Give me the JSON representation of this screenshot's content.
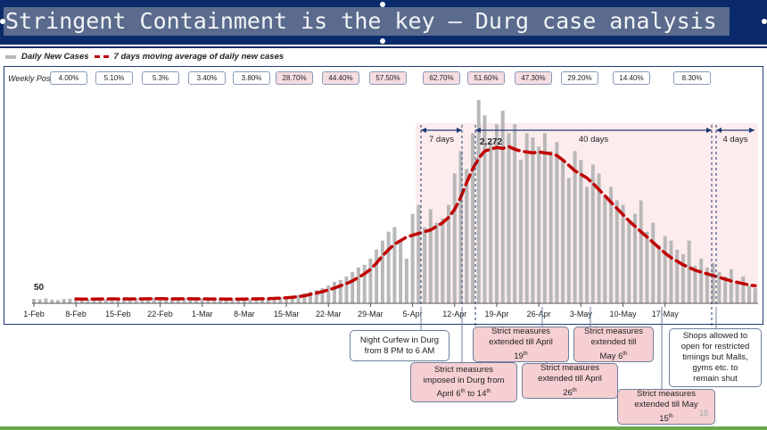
{
  "title": "Stringent Containment is the key  – Durg case analysis",
  "slide_number": "18",
  "legend": {
    "bars": "Daily New Cases",
    "line": "7 days moving average of daily new cases"
  },
  "weekly_positivity": {
    "label": "Weekly Positivity",
    "values": [
      "4.00%",
      "5.10%",
      "5.3%",
      "3.40%",
      "3.80%",
      "28.70%",
      "44.40%",
      "57.50%",
      "62.70%",
      "51.60%",
      "47.30%",
      "29.20%",
      "14.40%",
      "8.30%"
    ]
  },
  "colors": {
    "bars": "#b8b8b8",
    "moving_average": "#c00000",
    "shaded_period": "#fbe6e8",
    "title_bar": "#0a2a6b",
    "callout_pink": "#f6cfd3"
  },
  "chart_data": {
    "type": "bar",
    "x_start": "2021-02-01",
    "x_ticks": [
      "1-Feb",
      "8-Feb",
      "15-Feb",
      "22-Feb",
      "1-Mar",
      "8-Mar",
      "15-Mar",
      "22-Mar",
      "29-Mar",
      "5-Apr",
      "12-Apr",
      "19-Apr",
      "26-Apr",
      "3-May",
      "10-May",
      "17-May"
    ],
    "ylim": [
      0,
      2600
    ],
    "grid": false,
    "legend_position": "top-left",
    "series": [
      {
        "name": "Daily New Cases",
        "type": "bar",
        "values": [
          50,
          45,
          55,
          40,
          35,
          48,
          52,
          60,
          40,
          45,
          38,
          50,
          42,
          55,
          48,
          52,
          40,
          58,
          45,
          50,
          62,
          55,
          48,
          52,
          45,
          60,
          50,
          42,
          55,
          48,
          52,
          45,
          50,
          40,
          55,
          48,
          42,
          50,
          60,
          55,
          48,
          70,
          65,
          80,
          95,
          110,
          130,
          150,
          170,
          200,
          240,
          260,
          300,
          350,
          400,
          430,
          500,
          600,
          700,
          800,
          850,
          700,
          500,
          1000,
          1100,
          850,
          1050,
          900,
          950,
          1100,
          1450,
          1700,
          1500,
          1900,
          2272,
          2100,
          1800,
          2000,
          2150,
          1900,
          2000,
          1600,
          1900,
          1850,
          1750,
          1900,
          1700,
          1800,
          1600,
          1400,
          1700,
          1600,
          1300,
          1550,
          1450,
          1200,
          1300,
          1150,
          1100,
          900,
          1000,
          1150,
          800,
          900,
          650,
          750,
          700,
          600,
          550,
          700,
          420,
          500,
          400,
          450,
          350,
          300,
          380,
          250,
          300,
          200,
          170
        ]
      },
      {
        "name": "7 days moving average of daily new cases",
        "type": "line",
        "values": [
          48,
          46,
          47,
          46,
          47,
          47,
          48,
          49,
          48,
          47,
          48,
          49,
          48,
          50,
          49,
          50,
          49,
          50,
          50,
          51,
          52,
          52,
          51,
          50,
          50,
          51,
          51,
          50,
          50,
          49,
          49,
          49,
          48,
          47,
          48,
          48,
          49,
          50,
          51,
          52,
          55,
          58,
          62,
          68,
          75,
          85,
          100,
          115,
          130,
          150,
          170,
          195,
          220,
          250,
          290,
          330,
          380,
          450,
          530,
          600,
          660,
          700,
          740,
          760,
          780,
          800,
          820,
          860,
          900,
          960,
          1050,
          1180,
          1350,
          1500,
          1620,
          1700,
          1720,
          1740,
          1730,
          1750,
          1720,
          1700,
          1690,
          1680,
          1690,
          1680,
          1670,
          1650,
          1600,
          1540,
          1480,
          1440,
          1400,
          1340,
          1270,
          1200,
          1130,
          1060,
          990,
          920,
          860,
          800,
          740,
          680,
          620,
          560,
          510,
          470,
          430,
          400,
          370,
          350,
          330,
          310,
          290,
          270,
          250,
          235,
          220,
          205,
          195
        ]
      }
    ],
    "annotations": [
      {
        "text": "50",
        "type": "value_label"
      },
      {
        "text": "2,272",
        "type": "peak_label"
      },
      {
        "text": "7 days",
        "type": "interval"
      },
      {
        "text": "40 days",
        "type": "interval"
      },
      {
        "text": "4 days",
        "type": "interval"
      }
    ]
  },
  "callouts": [
    {
      "id": "curfew",
      "line1": "Night Curfew in Durg",
      "line2": "from 8 PM to 6 AM",
      "line3": ""
    },
    {
      "id": "imposed",
      "line1": "Strict measures",
      "line2": "imposed in Durg from",
      "line3": "April 6th to 14th"
    },
    {
      "id": "ext19",
      "line1": "Strict measures",
      "line2": "extended till April",
      "line3": "19th"
    },
    {
      "id": "ext26",
      "line1": "Strict measures",
      "line2": "extended till April",
      "line3": "26th"
    },
    {
      "id": "ext6",
      "line1": "Strict measures",
      "line2": "extended till",
      "line3": "May 6th"
    },
    {
      "id": "ext15",
      "line1": "Strict measures",
      "line2": "extended till May",
      "line3": "15th"
    },
    {
      "id": "shops",
      "line1": "Shops allowed to",
      "line2": "open for restricted",
      "line3": "timings but Malls,",
      "line4": "gyms etc. to",
      "line5": "remain shut"
    }
  ]
}
